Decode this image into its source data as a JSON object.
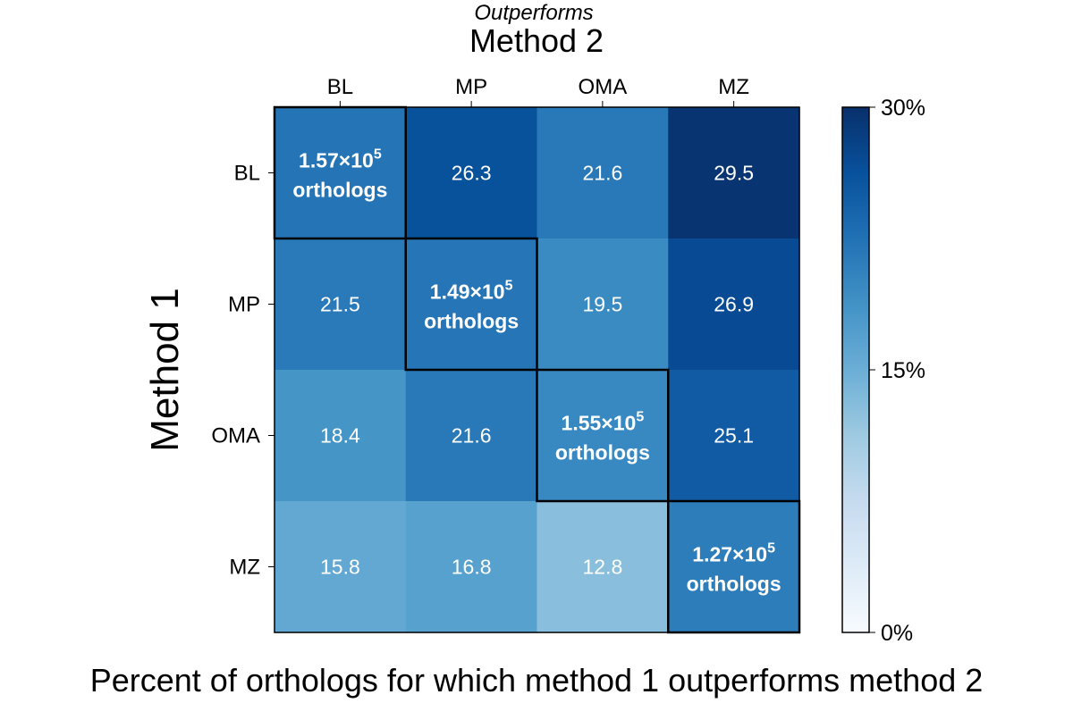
{
  "chart_data": {
    "type": "heatmap",
    "top_annotation": "Outperforms",
    "top_axis_title": "Method 2",
    "left_axis_title": "Method 1",
    "caption": "Percent of orthologs for which method 1 outperforms method 2",
    "columns": [
      "BL",
      "MP",
      "OMA",
      "MZ"
    ],
    "rows": [
      "BL",
      "MP",
      "OMA",
      "MZ"
    ],
    "values": [
      [
        null,
        26.3,
        21.6,
        29.5
      ],
      [
        21.5,
        null,
        19.5,
        26.9
      ],
      [
        18.4,
        21.6,
        null,
        25.1
      ],
      [
        15.8,
        16.8,
        12.8,
        null
      ]
    ],
    "diagonal": [
      {
        "mantissa": "1.57",
        "exponent": "5",
        "unit": "orthologs"
      },
      {
        "mantissa": "1.49",
        "exponent": "5",
        "unit": "orthologs"
      },
      {
        "mantissa": "1.55",
        "exponent": "5",
        "unit": "orthologs"
      },
      {
        "mantissa": "1.27",
        "exponent": "5",
        "unit": "orthologs"
      }
    ],
    "value_range": [
      0,
      30
    ],
    "colorscale": "Blues",
    "colorbar": {
      "ticks": [
        0,
        15,
        30
      ],
      "tick_labels": [
        "0%",
        "15%",
        "30%"
      ]
    }
  }
}
